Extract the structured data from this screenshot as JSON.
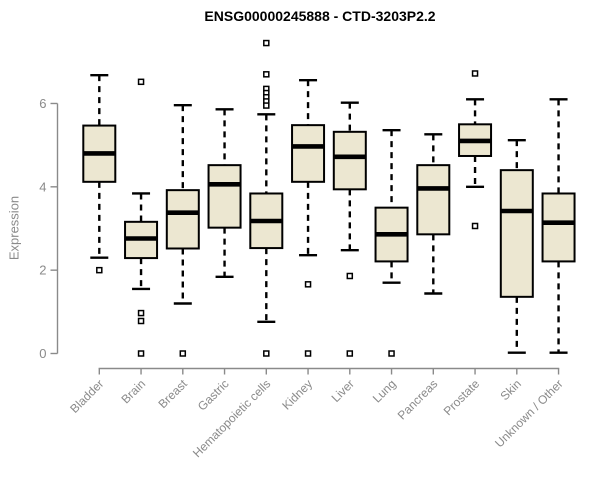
{
  "chart_data": {
    "type": "boxplot",
    "title": "ENSG00000245888 - CTD-3203P2.2",
    "ylabel": "Expression",
    "xlabel": "",
    "ylim": [
      0,
      7.6
    ],
    "yticks": [
      0,
      2,
      4,
      6
    ],
    "grid": false,
    "legend": "none",
    "categories": [
      "Bladder",
      "Brain",
      "Breast",
      "Gastric",
      "Hematopoietic cells",
      "Kidney",
      "Liver",
      "Lung",
      "Pancreas",
      "Prostate",
      "Skin",
      "Unknown / Other"
    ],
    "boxes": [
      {
        "category": "Bladder",
        "low": 2.3,
        "q1": 4.12,
        "median": 4.8,
        "q3": 5.47,
        "high": 6.68,
        "outliers": [
          2.0
        ]
      },
      {
        "category": "Brain",
        "low": 1.55,
        "q1": 2.29,
        "median": 2.76,
        "q3": 3.16,
        "high": 3.84,
        "outliers": [
          6.52,
          0.97,
          0.78,
          0
        ]
      },
      {
        "category": "Breast",
        "low": 1.2,
        "q1": 2.52,
        "median": 3.38,
        "q3": 3.92,
        "high": 5.96,
        "outliers": [
          0
        ]
      },
      {
        "category": "Gastric",
        "low": 1.84,
        "q1": 3.02,
        "median": 4.06,
        "q3": 4.52,
        "high": 5.86,
        "outliers": []
      },
      {
        "category": "Hematopoietic cells",
        "low": 0.76,
        "q1": 2.53,
        "median": 3.18,
        "q3": 3.84,
        "high": 5.74,
        "outliers": [
          7.45,
          6.7,
          6.35,
          6.25,
          6.15,
          6.05,
          5.95,
          0
        ]
      },
      {
        "category": "Kidney",
        "low": 2.36,
        "q1": 4.12,
        "median": 4.97,
        "q3": 5.48,
        "high": 6.56,
        "outliers": [
          1.66,
          0
        ]
      },
      {
        "category": "Liver",
        "low": 2.48,
        "q1": 3.94,
        "median": 4.72,
        "q3": 5.32,
        "high": 6.02,
        "outliers": [
          1.86,
          0
        ]
      },
      {
        "category": "Lung",
        "low": 1.7,
        "q1": 2.21,
        "median": 2.86,
        "q3": 3.5,
        "high": 5.36,
        "outliers": [
          0
        ]
      },
      {
        "category": "Pancreas",
        "low": 1.44,
        "q1": 2.86,
        "median": 3.96,
        "q3": 4.52,
        "high": 5.26,
        "outliers": []
      },
      {
        "category": "Prostate",
        "low": 4.0,
        "q1": 4.74,
        "median": 5.1,
        "q3": 5.5,
        "high": 6.1,
        "outliers": [
          6.72,
          3.06
        ]
      },
      {
        "category": "Skin",
        "low": 0.02,
        "q1": 1.36,
        "median": 3.42,
        "q3": 4.4,
        "high": 5.12,
        "outliers": []
      },
      {
        "category": "Unknown / Other",
        "low": 0.02,
        "q1": 2.21,
        "median": 3.14,
        "q3": 3.84,
        "high": 6.1,
        "outliers": []
      }
    ]
  },
  "style": {
    "background": "#ffffff",
    "box_fill": "#ece7d1",
    "box_border": "#000000",
    "median_color": "#000000",
    "whisker_color": "#000000",
    "outlier_fill": "#ffffff",
    "outlier_border": "#000000",
    "axis_color": "#8a8a8a",
    "tick_label_color": "#8a8a8a",
    "title_color": "#000000"
  }
}
